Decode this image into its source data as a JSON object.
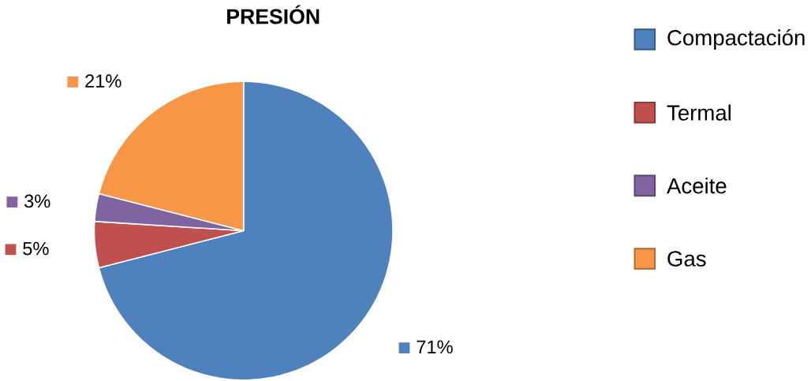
{
  "chart_data": {
    "type": "pie",
    "title": "PRESIÓN",
    "categories": [
      "Compactación",
      "Termal",
      "Aceite",
      "Gas"
    ],
    "values": [
      71,
      5,
      3,
      21
    ],
    "colors": [
      "#4f81bd",
      "#c0504d",
      "#8064a2",
      "#f79646"
    ],
    "value_labels": [
      "71%",
      "5%",
      "3%",
      "21%"
    ],
    "legend": "right"
  }
}
